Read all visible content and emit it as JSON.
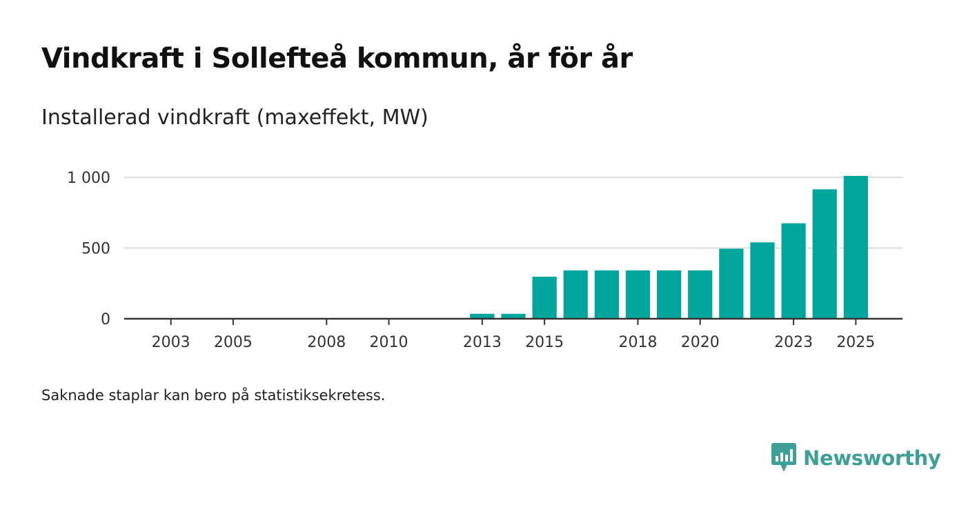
{
  "title": "Vindkraft i Sollefteå kommun, år för år",
  "subtitle": "Installerad vindkraft (maxeffekt, MW)",
  "footnote": "Saknade staplar kan bero på statistiksekretess.",
  "brand": {
    "name": "Newsworthy",
    "icon": "newsworthy-logo-icon"
  },
  "colors": {
    "bar": "#00a59b",
    "grid": "#dddddd",
    "axis": "#333333",
    "brand": "#3d9f96"
  },
  "chart_data": {
    "type": "bar",
    "title": "Vindkraft i Sollefteå kommun, år för år",
    "ylabel": "Installerad vindkraft (maxeffekt, MW)",
    "xlabel": "",
    "xlim": [
      2001.5,
      2026.5
    ],
    "ylim": [
      0,
      1000
    ],
    "yticks": [
      0,
      500,
      1000
    ],
    "ytick_labels": [
      "0",
      "500",
      "1 000"
    ],
    "xticks": [
      2003,
      2005,
      2008,
      2010,
      2013,
      2015,
      2018,
      2020,
      2023,
      2025
    ],
    "xtick_labels": [
      "2003",
      "2005",
      "2008",
      "2010",
      "2013",
      "2015",
      "2018",
      "2020",
      "2023",
      "2025"
    ],
    "grid": true,
    "categories": [
      2013,
      2014,
      2015,
      2016,
      2017,
      2018,
      2019,
      2020,
      2021,
      2022,
      2023,
      2024,
      2025
    ],
    "values": [
      35,
      35,
      297,
      342,
      342,
      342,
      342,
      342,
      495,
      540,
      675,
      915,
      1010
    ]
  }
}
